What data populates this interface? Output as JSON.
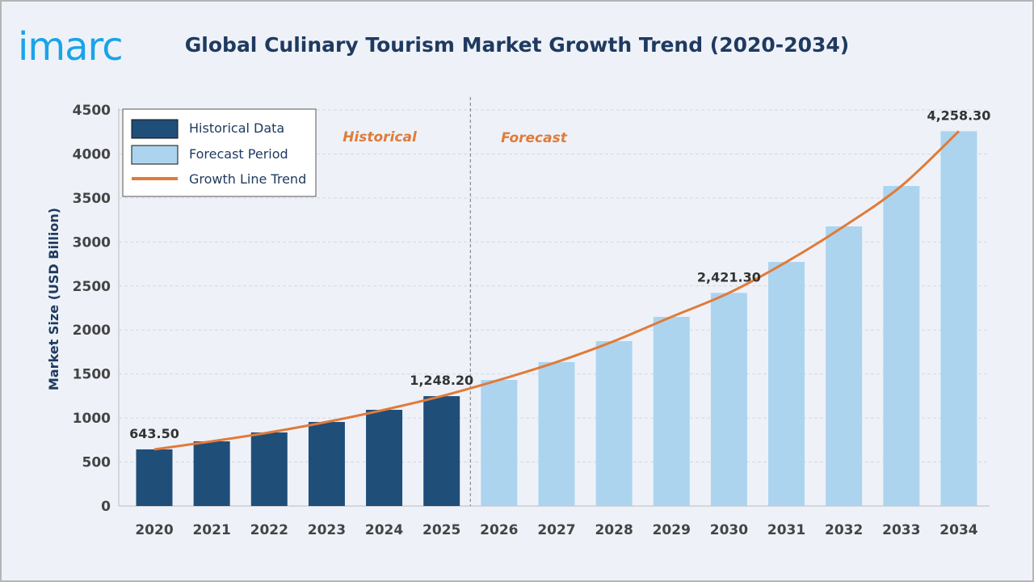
{
  "logo_text": "imarc",
  "chart_data": {
    "type": "bar",
    "title": "Global Culinary Tourism Market Growth Trend (2020-2034)",
    "ylabel": "Market Size (USD Billion)",
    "xlabel": "",
    "ylim": [
      0,
      4500
    ],
    "yticks": [
      "0",
      "500",
      "1000",
      "1500",
      "2000",
      "2500",
      "3000",
      "3500",
      "4000",
      "4500"
    ],
    "grid": true,
    "legend_placement": "top-left",
    "categories": [
      "2020",
      "2021",
      "2022",
      "2023",
      "2024",
      "2025",
      "2026",
      "2027",
      "2028",
      "2029",
      "2030",
      "2031",
      "2032",
      "2033",
      "2034"
    ],
    "series": [
      {
        "name": "Historical Data",
        "type": "bar",
        "color": "#1f4e79",
        "values": [
          643.5,
          735,
          836,
          955,
          1093,
          1248.2,
          null,
          null,
          null,
          null,
          null,
          null,
          null,
          null,
          null
        ]
      },
      {
        "name": "Forecast Period",
        "type": "bar",
        "color": "#acd4ef",
        "values": [
          null,
          null,
          null,
          null,
          null,
          null,
          1432,
          1635,
          1873,
          2149,
          2421.3,
          2773,
          3177,
          3636,
          4258.3
        ]
      },
      {
        "name": "Growth Line Trend",
        "type": "line",
        "color": "#e07b39",
        "values": [
          643.5,
          735,
          836,
          955,
          1093,
          1248.2,
          1432,
          1635,
          1873,
          2149,
          2421.3,
          2773,
          3177,
          3636,
          4258.3
        ]
      }
    ],
    "data_labels": [
      {
        "category": "2020",
        "text": "643.50"
      },
      {
        "category": "2025",
        "text": "1,248.20"
      },
      {
        "category": "2030",
        "text": "2,421.30"
      },
      {
        "category": "2034",
        "text": "4,258.30"
      }
    ],
    "annotations": {
      "historical": "Historical",
      "forecast": "Forecast"
    },
    "divider_between": [
      "2025",
      "2026"
    ]
  }
}
